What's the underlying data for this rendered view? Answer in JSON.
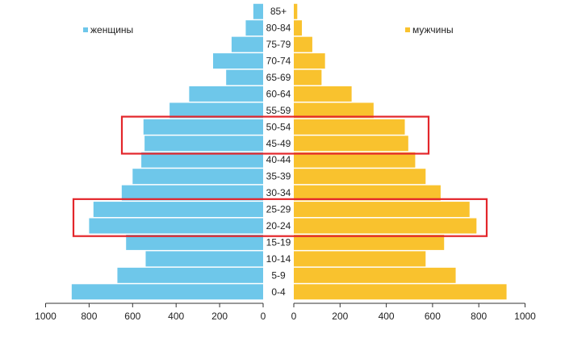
{
  "chart_data": {
    "type": "bar",
    "orientation": "horizontal",
    "subtype": "population-pyramid",
    "categories": [
      "0-4",
      "5-9",
      "10-14",
      "15-19",
      "20-24",
      "25-29",
      "30-34",
      "35-39",
      "40-44",
      "45-49",
      "50-54",
      "55-59",
      "60-64",
      "65-69",
      "70-74",
      "75-79",
      "80-84",
      "85+"
    ],
    "series": [
      {
        "name": "женщины",
        "color": "#6ec7ea",
        "values": [
          880,
          670,
          540,
          630,
          800,
          780,
          650,
          600,
          560,
          545,
          550,
          430,
          340,
          170,
          230,
          145,
          80,
          45
        ]
      },
      {
        "name": "мужчины",
        "color": "#f9c22e",
        "values": [
          920,
          700,
          570,
          650,
          790,
          760,
          635,
          570,
          525,
          495,
          480,
          345,
          250,
          120,
          135,
          80,
          35,
          15
        ]
      }
    ],
    "left_axis": {
      "ticks": [
        1000,
        800,
        600,
        400,
        200,
        0
      ],
      "range": [
        1000,
        0
      ]
    },
    "right_axis": {
      "ticks": [
        0,
        200,
        400,
        600,
        800,
        1000
      ],
      "range": [
        0,
        1000
      ]
    },
    "legend_position": "top",
    "grid": false,
    "highlights": [
      {
        "categories": [
          "45-49",
          "50-54"
        ],
        "color": "#e3262b"
      },
      {
        "categories": [
          "20-24",
          "25-29"
        ],
        "color": "#e3262b"
      }
    ]
  }
}
